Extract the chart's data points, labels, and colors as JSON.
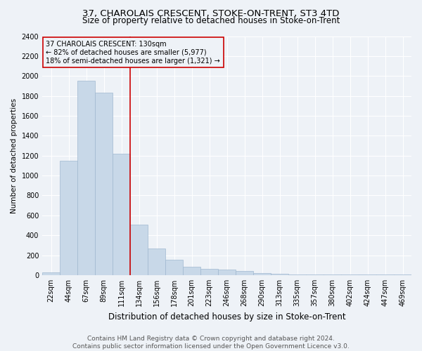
{
  "title1": "37, CHAROLAIS CRESCENT, STOKE-ON-TRENT, ST3 4TD",
  "title2": "Size of property relative to detached houses in Stoke-on-Trent",
  "xlabel": "Distribution of detached houses by size in Stoke-on-Trent",
  "ylabel": "Number of detached properties",
  "categories": [
    "22sqm",
    "44sqm",
    "67sqm",
    "89sqm",
    "111sqm",
    "134sqm",
    "156sqm",
    "178sqm",
    "201sqm",
    "223sqm",
    "246sqm",
    "268sqm",
    "290sqm",
    "313sqm",
    "335sqm",
    "357sqm",
    "380sqm",
    "402sqm",
    "424sqm",
    "447sqm",
    "469sqm"
  ],
  "values": [
    30,
    1150,
    1950,
    1830,
    1220,
    510,
    265,
    155,
    85,
    60,
    55,
    45,
    20,
    15,
    10,
    10,
    5,
    5,
    5,
    5,
    5
  ],
  "bar_color": "#c8d8e8",
  "bar_edge_color": "#a0b8d0",
  "vline_color": "#cc0000",
  "annotation_line1": "37 CHAROLAIS CRESCENT: 130sqm",
  "annotation_line2": "← 82% of detached houses are smaller (5,977)",
  "annotation_line3": "18% of semi-detached houses are larger (1,321) →",
  "annotation_box_color": "#cc0000",
  "ylim": [
    0,
    2400
  ],
  "yticks": [
    0,
    200,
    400,
    600,
    800,
    1000,
    1200,
    1400,
    1600,
    1800,
    2000,
    2200,
    2400
  ],
  "footer1": "Contains HM Land Registry data © Crown copyright and database right 2024.",
  "footer2": "Contains public sector information licensed under the Open Government Licence v3.0.",
  "background_color": "#eef2f7",
  "grid_color": "#ffffff",
  "title1_fontsize": 9.5,
  "title2_fontsize": 8.5,
  "xlabel_fontsize": 8.5,
  "ylabel_fontsize": 7.5,
  "tick_fontsize": 7,
  "annotation_fontsize": 7,
  "footer_fontsize": 6.5
}
